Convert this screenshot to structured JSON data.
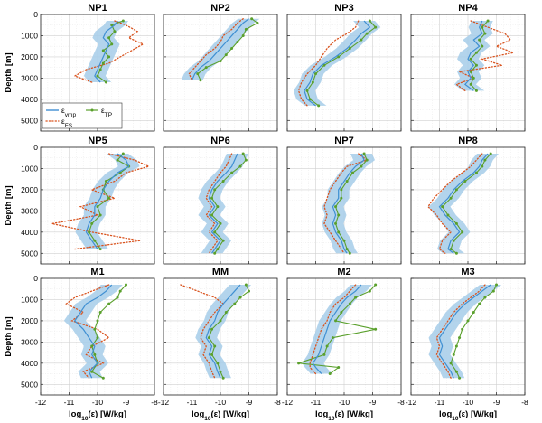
{
  "chart_data": {
    "type": "line",
    "layout": "3x4 panel grid",
    "xlabel_base": "log",
    "xlabel_sub": "10",
    "xlabel_rest": "(ε)  [W/kg]",
    "ylabel": "Depth [m]",
    "xlim": [
      -12,
      -8
    ],
    "ylim": [
      0,
      5500
    ],
    "y_inverted": true,
    "xticks": [
      -12,
      -11,
      -10,
      -9,
      -8
    ],
    "yticks": [
      0,
      1000,
      2000,
      3000,
      4000,
      5000
    ],
    "xtick_labels": [
      "-12",
      "-11",
      "-10",
      "-9",
      "-8"
    ],
    "ytick_labels": [
      "0",
      "1000",
      "2000",
      "3000",
      "4000",
      "5000"
    ],
    "grid": true,
    "legend": {
      "location": "bottom-left of NP1",
      "entries": [
        {
          "base": "ε",
          "sub": "vmp",
          "style": "solid",
          "color": "#3f8fd2"
        },
        {
          "base": "ε",
          "sub": "TP",
          "style": "solid-dots",
          "color": "#5aa02c"
        },
        {
          "base": "ε",
          "sub": "FS",
          "style": "dotted",
          "color": "#d9531e"
        }
      ]
    },
    "colors": {
      "vmp": "#3f8fd2",
      "band": "#a6cde9",
      "tp": "#5aa02c",
      "fs": "#d9531e"
    },
    "panels": [
      {
        "title": "NP1",
        "depth": [
          300,
          500,
          800,
          1100,
          1400,
          1700,
          2000,
          2300,
          2600,
          2900,
          3200
        ],
        "vmp": [
          -9.3,
          -9.4,
          -9.7,
          -9.8,
          -9.6,
          -9.7,
          -9.8,
          -9.9,
          -10.0,
          -10.1,
          -9.9
        ],
        "tp": [
          -9.1,
          -9.5,
          -9.4,
          -9.6,
          -9.5,
          -9.8,
          -9.6,
          -9.8,
          -9.9,
          -10.0,
          -9.7
        ],
        "fs": [
          -9.4,
          -9.0,
          -8.6,
          -8.9,
          -8.4,
          -8.8,
          -9.2,
          -9.6,
          -10.4,
          -10.8,
          -10.2
        ]
      },
      {
        "title": "NP2",
        "depth": [
          200,
          400,
          700,
          1000,
          1300,
          1600,
          1900,
          2200,
          2500,
          2800,
          3100
        ],
        "vmp": [
          -9.0,
          -9.2,
          -9.4,
          -9.6,
          -9.8,
          -10.0,
          -10.2,
          -10.4,
          -10.7,
          -10.9,
          -11.0
        ],
        "tp": [
          -8.9,
          -8.7,
          -9.1,
          -9.2,
          -9.4,
          -9.6,
          -9.8,
          -10.0,
          -10.5,
          -10.8,
          -10.7
        ],
        "fs": [
          -9.2,
          -9.4,
          -9.6,
          -9.9,
          -10.0,
          -10.2,
          -10.5,
          -10.7,
          -10.9,
          -11.1,
          -11.0
        ]
      },
      {
        "title": "NP3",
        "depth": [
          300,
          600,
          900,
          1200,
          1600,
          2000,
          2400,
          2800,
          3200,
          3600,
          4000,
          4300
        ],
        "vmp": [
          -9.3,
          -9.1,
          -9.4,
          -9.6,
          -9.9,
          -10.3,
          -10.8,
          -11.1,
          -11.2,
          -11.4,
          -11.3,
          -11.0
        ],
        "tp": [
          -9.1,
          -8.9,
          -9.2,
          -9.4,
          -9.8,
          -10.2,
          -10.7,
          -11.0,
          -11.1,
          -11.3,
          -11.2,
          -10.9
        ],
        "fs": [
          -9.5,
          -9.6,
          -9.9,
          -10.3,
          -10.6,
          -10.8,
          -11.0,
          -11.3,
          -11.5,
          -11.6,
          -11.5,
          -11.3
        ]
      },
      {
        "title": "NP4",
        "depth": [
          300,
          600,
          900,
          1200,
          1500,
          1800,
          2100,
          2400,
          2700,
          3000,
          3300,
          3600
        ],
        "vmp": [
          -9.5,
          -9.6,
          -9.5,
          -9.8,
          -9.6,
          -9.9,
          -10.0,
          -9.8,
          -10.0,
          -9.9,
          -10.1,
          -9.8
        ],
        "tp": [
          -9.3,
          -9.5,
          -9.4,
          -9.6,
          -9.5,
          -9.7,
          -9.9,
          -9.7,
          -9.9,
          -9.8,
          -9.9,
          -9.7
        ],
        "fs": [
          -9.9,
          -9.3,
          -8.7,
          -8.5,
          -9.0,
          -8.4,
          -9.5,
          -8.8,
          -10.3,
          -9.8,
          -10.4,
          -10.1
        ]
      },
      {
        "title": "NP5",
        "depth": [
          300,
          600,
          900,
          1200,
          1600,
          2000,
          2400,
          2800,
          3200,
          3600,
          4000,
          4400,
          4800
        ],
        "vmp": [
          -9.3,
          -9.0,
          -8.9,
          -9.3,
          -9.6,
          -9.8,
          -9.9,
          -10.1,
          -10.1,
          -10.3,
          -10.4,
          -10.2,
          -10.0
        ],
        "tp": [
          -9.1,
          -9.3,
          -8.9,
          -9.2,
          -9.7,
          -9.8,
          -9.6,
          -10.0,
          -9.9,
          -10.2,
          -10.3,
          -10.1,
          -9.9
        ],
        "fs": [
          -9.6,
          -8.7,
          -8.2,
          -9.0,
          -9.4,
          -10.2,
          -9.4,
          -10.6,
          -10.0,
          -11.6,
          -10.2,
          -8.5,
          -10.8
        ]
      },
      {
        "title": "NP6",
        "depth": [
          300,
          600,
          900,
          1200,
          1600,
          2000,
          2400,
          2800,
          3200,
          3600,
          4000,
          4400,
          4800,
          5000
        ],
        "vmp": [
          -9.4,
          -9.5,
          -9.6,
          -9.8,
          -10.1,
          -10.3,
          -10.4,
          -10.2,
          -10.4,
          -10.1,
          -10.3,
          -10.0,
          -10.2,
          -10.3
        ],
        "tp": [
          -9.2,
          -9.1,
          -9.3,
          -9.6,
          -9.9,
          -10.2,
          -10.3,
          -10.1,
          -10.3,
          -10.0,
          -10.2,
          -9.9,
          -10.1,
          -10.2
        ],
        "fs": [
          -9.6,
          -9.7,
          -9.8,
          -10.0,
          -10.2,
          -10.4,
          -10.5,
          -10.3,
          -10.5,
          -10.2,
          -10.4,
          -10.1,
          -10.3,
          -10.4
        ]
      },
      {
        "title": "NP7",
        "depth": [
          300,
          600,
          900,
          1200,
          1600,
          2000,
          2400,
          2800,
          3200,
          3600,
          4000,
          4400,
          4800,
          5000
        ],
        "vmp": [
          -9.4,
          -9.3,
          -9.6,
          -9.8,
          -10.0,
          -10.2,
          -10.2,
          -10.4,
          -10.3,
          -10.4,
          -10.3,
          -10.1,
          -10.0,
          -9.9
        ],
        "tp": [
          -9.3,
          -9.2,
          -9.4,
          -9.7,
          -9.9,
          -10.1,
          -10.1,
          -10.3,
          -10.2,
          -10.3,
          -10.2,
          -10.0,
          -9.9,
          -9.8
        ],
        "fs": [
          -9.5,
          -9.2,
          -9.9,
          -10.1,
          -10.3,
          -10.5,
          -10.6,
          -10.7,
          -10.6,
          -10.7,
          -10.5,
          -10.3,
          -10.1,
          -10.0
        ]
      },
      {
        "title": "NP8",
        "depth": [
          300,
          600,
          900,
          1200,
          1600,
          2000,
          2400,
          2800,
          3200,
          3600,
          4000,
          4400,
          4800,
          5000
        ],
        "vmp": [
          -9.3,
          -9.5,
          -9.6,
          -9.8,
          -10.2,
          -10.5,
          -10.7,
          -11.0,
          -10.8,
          -10.5,
          -10.3,
          -10.6,
          -10.7,
          -10.5
        ],
        "tp": [
          -9.2,
          -9.4,
          -9.5,
          -9.7,
          -10.1,
          -10.4,
          -10.6,
          -10.9,
          -10.7,
          -10.4,
          -10.2,
          -10.5,
          -10.6,
          -10.4
        ],
        "fs": [
          -9.5,
          -9.7,
          -9.9,
          -10.2,
          -10.6,
          -10.9,
          -11.2,
          -11.4,
          -11.1,
          -10.9,
          -10.6,
          -10.9,
          -11.0,
          -10.8
        ]
      },
      {
        "title": "M1",
        "depth": [
          300,
          600,
          900,
          1200,
          1600,
          2000,
          2400,
          2800,
          3200,
          3600,
          4000,
          4400,
          4700
        ],
        "vmp": [
          -9.5,
          -9.7,
          -10.0,
          -10.4,
          -10.6,
          -10.8,
          -10.5,
          -10.3,
          -10.1,
          -10.2,
          -10.0,
          -10.3,
          -10.2
        ],
        "tp": [
          -9.0,
          -9.2,
          -9.3,
          -9.6,
          -9.9,
          -10.0,
          -10.1,
          -10.0,
          -10.2,
          -10.1,
          -10.0,
          -10.2,
          -9.8
        ],
        "fs": [
          -9.6,
          -10.2,
          -10.8,
          -11.1,
          -10.5,
          -10.9,
          -10.0,
          -9.6,
          -10.2,
          -10.4,
          -9.8,
          -10.5,
          -10.3
        ]
      },
      {
        "title": "MM",
        "depth": [
          300,
          600,
          900,
          1200,
          1600,
          2000,
          2400,
          2800,
          3200,
          3600,
          4000,
          4400,
          4700
        ],
        "vmp": [
          -9.3,
          -9.5,
          -9.7,
          -9.9,
          -10.1,
          -10.2,
          -10.4,
          -10.5,
          -10.3,
          -10.4,
          -10.2,
          -10.1,
          -10.0
        ],
        "tp": [
          -9.1,
          -9.0,
          -9.3,
          -9.5,
          -9.8,
          -10.0,
          -10.3,
          -10.4,
          -10.2,
          -10.3,
          -10.1,
          -10.0,
          -9.9
        ],
        "fs": [
          -11.4,
          -10.8,
          -10.2,
          -9.9,
          -10.2,
          -10.4,
          -10.6,
          -10.7,
          -10.5,
          -10.6,
          -10.4,
          -10.3,
          -10.2
        ]
      },
      {
        "title": "M2",
        "depth": [
          300,
          600,
          900,
          1200,
          1600,
          2000,
          2400,
          2800,
          3200,
          3600,
          4000,
          4200,
          4500
        ],
        "vmp": [
          -9.4,
          -9.6,
          -9.9,
          -10.1,
          -10.3,
          -10.5,
          -10.6,
          -10.7,
          -10.8,
          -10.9,
          -11.1,
          -11.0,
          -10.8
        ],
        "tp": [
          -8.9,
          -9.1,
          -9.6,
          -9.8,
          -10.1,
          -10.3,
          -8.9,
          -10.4,
          -10.6,
          -10.7,
          -11.6,
          -10.2,
          -10.5
        ],
        "fs": [
          -9.6,
          -9.8,
          -10.0,
          -10.3,
          -10.5,
          -10.6,
          -10.8,
          -10.9,
          -11.0,
          -11.1,
          -11.2,
          -11.2,
          -11.0
        ]
      },
      {
        "title": "M3",
        "depth": [
          300,
          600,
          900,
          1200,
          1600,
          2000,
          2400,
          2800,
          3200,
          3600,
          4000,
          4400,
          4700
        ],
        "vmp": [
          -9.2,
          -9.5,
          -9.8,
          -10.1,
          -10.4,
          -10.6,
          -10.8,
          -11.0,
          -10.9,
          -11.0,
          -10.8,
          -10.6,
          -10.5
        ],
        "tp": [
          -9.0,
          -9.1,
          -9.4,
          -9.6,
          -9.8,
          -10.0,
          -10.2,
          -10.3,
          -10.4,
          -10.5,
          -10.6,
          -10.4,
          -10.3
        ],
        "fs": [
          -9.4,
          -9.6,
          -9.9,
          -10.2,
          -10.5,
          -10.7,
          -10.9,
          -11.1,
          -11.0,
          -11.1,
          -10.9,
          -10.7,
          -10.6
        ]
      }
    ]
  }
}
